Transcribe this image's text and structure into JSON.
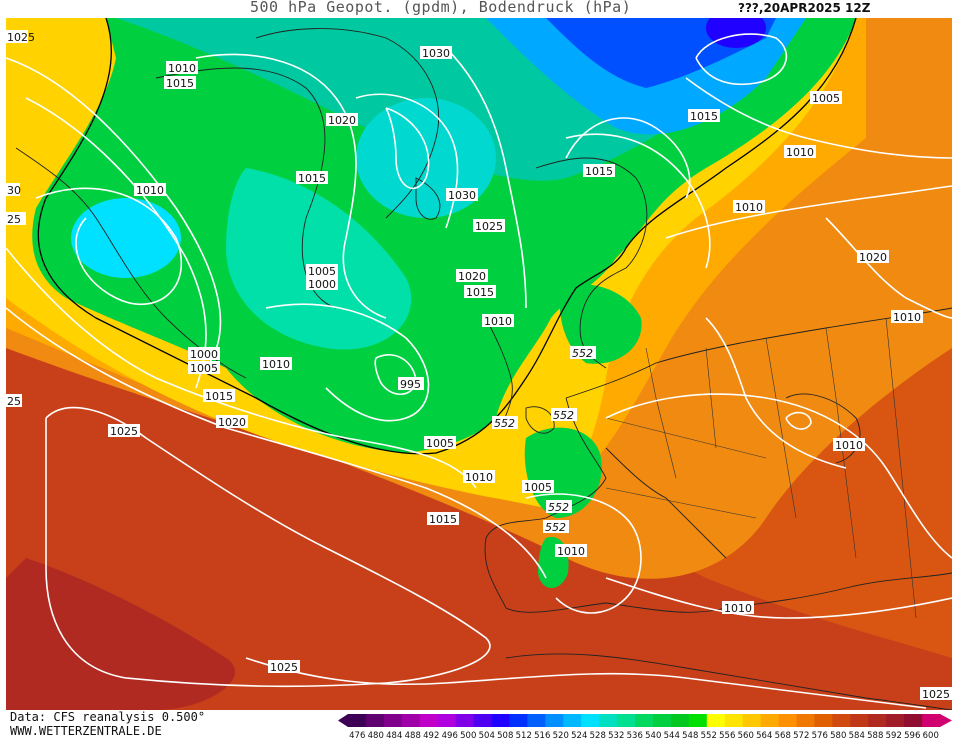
{
  "header": {
    "title": "500 hPa Geopot. (gpdm), Bodendruck (hPa)",
    "timestamp": "???,20APR2025 12Z"
  },
  "footer": {
    "data_source": "Data: CFS reanalysis 0.500°",
    "website": "WWW.WETTERZENTRALE.DE"
  },
  "legend": {
    "ticks": [
      "476",
      "480",
      "484",
      "488",
      "492",
      "496",
      "500",
      "504",
      "508",
      "512",
      "516",
      "520",
      "524",
      "528",
      "532",
      "536",
      "540",
      "544",
      "548",
      "552",
      "556",
      "560",
      "564",
      "568",
      "572",
      "576",
      "580",
      "584",
      "588",
      "592",
      "596",
      "600"
    ],
    "colors": [
      "#3c0054",
      "#5e0070",
      "#80008c",
      "#a000a8",
      "#c000c8",
      "#b000e0",
      "#8000e8",
      "#5000f0",
      "#2000ff",
      "#0030ff",
      "#0060ff",
      "#0090ff",
      "#00b8ff",
      "#00e0ff",
      "#00e0c0",
      "#00e090",
      "#00d860",
      "#00d040",
      "#00c820",
      "#00e000",
      "#ffff00",
      "#ffe400",
      "#ffc800",
      "#ffaa00",
      "#ff9000",
      "#f07800",
      "#e06000",
      "#d04a10",
      "#c03818",
      "#b02a20",
      "#a01c28",
      "#900f30",
      "#d00070"
    ]
  },
  "map": {
    "isobar_labels": [
      {
        "text": "1030"
      },
      {
        "text": "1010"
      },
      {
        "text": "1015"
      },
      {
        "text": "1020"
      },
      {
        "text": "1015"
      },
      {
        "text": "1030"
      },
      {
        "text": "1025"
      },
      {
        "text": "1010"
      },
      {
        "text": "1005"
      },
      {
        "text": "1000"
      },
      {
        "text": "1020"
      },
      {
        "text": "1015"
      },
      {
        "text": "1010"
      },
      {
        "text": "1000"
      },
      {
        "text": "1005"
      },
      {
        "text": "1010"
      },
      {
        "text": "995"
      },
      {
        "text": "1015"
      },
      {
        "text": "1020"
      },
      {
        "text": "1025"
      },
      {
        "text": "1005"
      },
      {
        "text": "1010"
      },
      {
        "text": "1005"
      },
      {
        "text": "1015"
      },
      {
        "text": "1010"
      },
      {
        "text": "1015"
      },
      {
        "text": "1005"
      },
      {
        "text": "1010"
      },
      {
        "text": "1010"
      },
      {
        "text": "1020"
      },
      {
        "text": "1015"
      },
      {
        "text": "1010"
      },
      {
        "text": "1010"
      },
      {
        "text": "1025"
      },
      {
        "text": "1010"
      },
      {
        "text": "1025"
      },
      {
        "text": "1025"
      },
      {
        "text": "30"
      },
      {
        "text": "25"
      },
      {
        "text": "25"
      }
    ],
    "contour_552_labels": [
      "552",
      "552",
      "552",
      "552",
      "552"
    ]
  }
}
